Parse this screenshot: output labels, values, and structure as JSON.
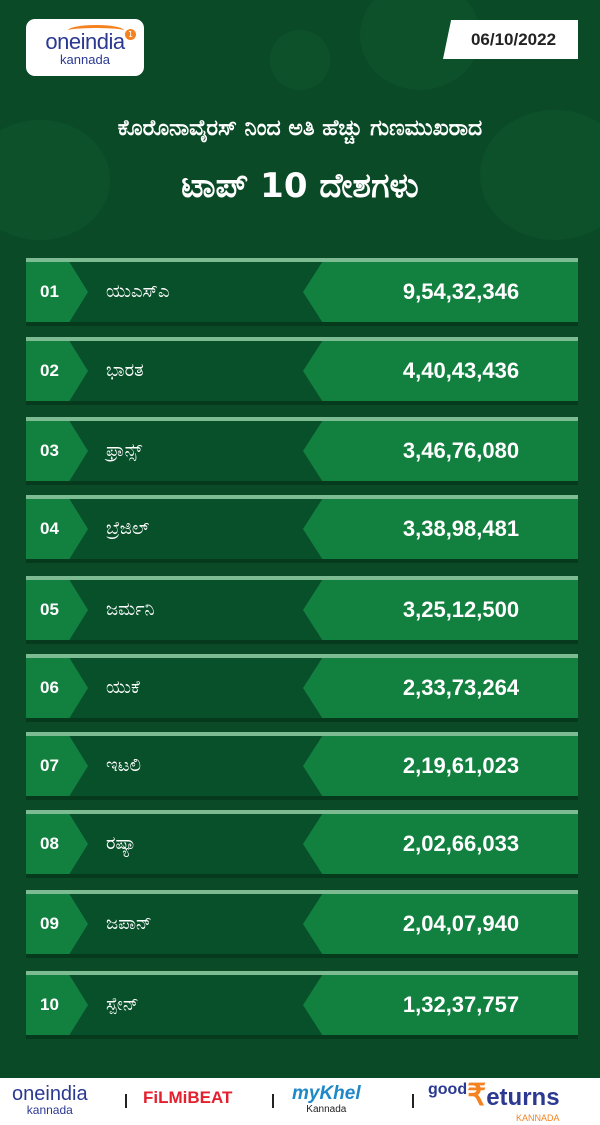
{
  "header": {
    "logo": {
      "main": "oneindia",
      "sub": "kannada",
      "badge": "1"
    },
    "date": "06/10/2022",
    "title_line1": "ಕೊರೊನಾವೈರಸ್ ನಿಂದ ಅತಿ ಹೆಚ್ಚು ಗುಣಮುಖರಾದ",
    "title_line2": "ಟಾಪ್ 10 ದೇಶಗಳು"
  },
  "rows": [
    {
      "rank": "01",
      "country": "ಯುಎಸ್ಎ",
      "value": "9,54,32,346"
    },
    {
      "rank": "02",
      "country": "ಭಾರತ",
      "value": "4,40,43,436"
    },
    {
      "rank": "03",
      "country": "ಫ್ರಾನ್ಸ್",
      "value": "3,46,76,080"
    },
    {
      "rank": "04",
      "country": "ಬ್ರೆಜಿಲ್",
      "value": "3,38,98,481"
    },
    {
      "rank": "05",
      "country": "ಜರ್ಮನಿ",
      "value": "3,25,12,500"
    },
    {
      "rank": "06",
      "country": "ಯುಕೆ",
      "value": "2,33,73,264"
    },
    {
      "rank": "07",
      "country": "ಇಟಲಿ",
      "value": "2,19,61,023"
    },
    {
      "rank": "08",
      "country": "ರಷ್ಯಾ",
      "value": "2,02,66,033"
    },
    {
      "rank": "09",
      "country": "ಜಪಾನ್",
      "value": "2,04,07,940"
    },
    {
      "rank": "10",
      "country": "ಸ್ಪೇನ್",
      "value": "1,32,37,757"
    }
  ],
  "footer": {
    "oneindia": {
      "main": "oneindia",
      "sub": "kannada"
    },
    "filmibeat": "FiLMiBEAT",
    "mykhel": {
      "main": "myKhel",
      "sub": "Kannada"
    },
    "goodreturns": {
      "good": "good",
      "rupee": "₹",
      "main": "eturns",
      "sub": "KANNADA"
    }
  },
  "colors": {
    "background": "#0b4a27",
    "row_light": "#128140",
    "row_dark": "#07502a",
    "accent_orange": "#f58220",
    "brand_blue": "#2b3990"
  }
}
